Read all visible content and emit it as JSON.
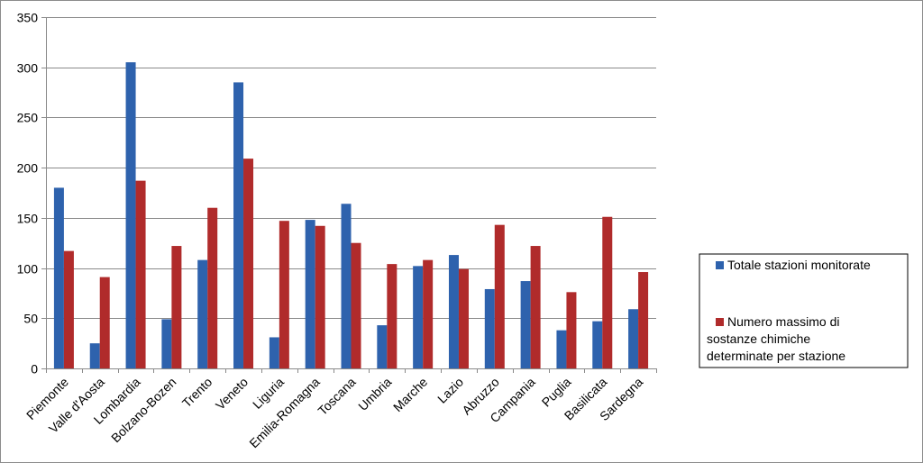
{
  "chart_data": {
    "type": "bar",
    "categories": [
      "Piemonte",
      "Valle d'Aosta",
      "Lombardia",
      "Bolzano-Bozen",
      "Trento",
      "Veneto",
      "Liguria",
      "Emilia-Romagna",
      "Toscana",
      "Umbria",
      "Marche",
      "Lazio",
      "Abruzzo",
      "Campania",
      "Puglia",
      "Basilicata",
      "Sardegna"
    ],
    "series": [
      {
        "name": "Totale stazioni monitorate",
        "color": "#2e62ad",
        "values": [
          180,
          25,
          305,
          49,
          108,
          285,
          31,
          148,
          164,
          43,
          102,
          113,
          79,
          87,
          38,
          47,
          59
        ]
      },
      {
        "name": "Numero massimo di sostanze chimiche determinate per stazione",
        "color": "#b02b2b",
        "values": [
          117,
          91,
          187,
          122,
          160,
          209,
          147,
          142,
          125,
          104,
          108,
          99,
          143,
          122,
          76,
          151,
          96
        ]
      }
    ],
    "title": "",
    "xlabel": "",
    "ylabel": "",
    "ylim": [
      0,
      350
    ],
    "yticks": [
      0,
      50,
      100,
      150,
      200,
      250,
      300,
      350
    ],
    "grid": true,
    "legend_position": "right"
  }
}
